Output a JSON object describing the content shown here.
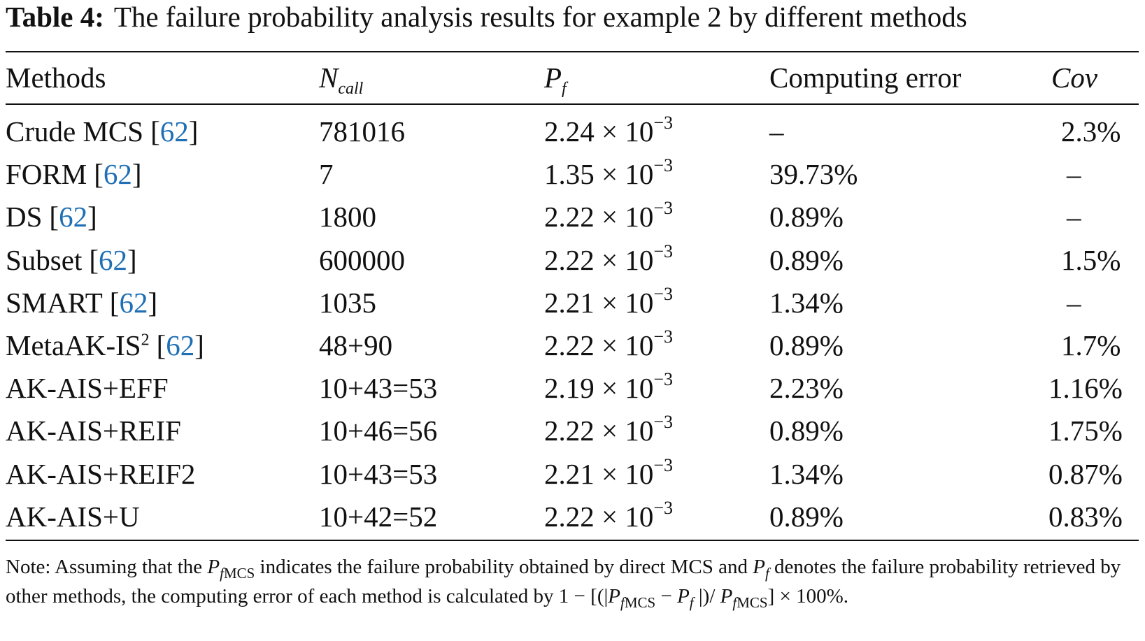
{
  "caption": {
    "label": "Table 4:",
    "text": "The failure probability analysis results for example 2 by different methods"
  },
  "table": {
    "header": {
      "methods": "Methods",
      "ncall": {
        "base": "N",
        "sub": "call"
      },
      "pf": {
        "base": "P",
        "sub": "f"
      },
      "error": "Computing error",
      "cov": "Cov"
    },
    "rows": [
      {
        "method": {
          "name": "Crude MCS"
        },
        "citation": [
          "[",
          "62",
          "]"
        ],
        "ncall": "781016",
        "pf": {
          "mantissa": "2.24 × 10",
          "exp": "−3"
        },
        "error": "–",
        "cov": "2.3%"
      },
      {
        "method": {
          "name": "FORM"
        },
        "citation": [
          "[",
          "62",
          "]"
        ],
        "ncall": "7",
        "pf": {
          "mantissa": "1.35 × 10",
          "exp": "−3"
        },
        "error": "39.73%",
        "cov": "–"
      },
      {
        "method": {
          "name": "DS"
        },
        "citation": [
          "[",
          "62",
          "]"
        ],
        "ncall": "1800",
        "pf": {
          "mantissa": "2.22 × 10",
          "exp": "−3"
        },
        "error": "0.89%",
        "cov": "–"
      },
      {
        "method": {
          "name": "Subset"
        },
        "citation": [
          "[",
          "62",
          "]"
        ],
        "ncall": "600000",
        "pf": {
          "mantissa": "2.22 × 10",
          "exp": "−3"
        },
        "error": "0.89%",
        "cov": "1.5%"
      },
      {
        "method": {
          "name": "SMART"
        },
        "citation": [
          "[",
          "62",
          "]"
        ],
        "ncall": "1035",
        "pf": {
          "mantissa": "2.21 × 10",
          "exp": "−3"
        },
        "error": "1.34%",
        "cov": "–"
      },
      {
        "method": {
          "name": "MetaAK-IS",
          "sup": "2"
        },
        "citation": [
          "[",
          "62",
          "]"
        ],
        "ncall": "48+90",
        "pf": {
          "mantissa": "2.22 × 10",
          "exp": "−3"
        },
        "error": "0.89%",
        "cov": "1.7%"
      },
      {
        "method": {
          "name": "AK-AIS+EFF"
        },
        "ncall": "10+43=53",
        "pf": {
          "mantissa": "2.19 × 10",
          "exp": "−3"
        },
        "error": "2.23%",
        "cov": "1.16%"
      },
      {
        "method": {
          "name": "AK-AIS+REIF"
        },
        "ncall": "10+46=56",
        "pf": {
          "mantissa": "2.22 × 10",
          "exp": "−3"
        },
        "error": "0.89%",
        "cov": "1.75%"
      },
      {
        "method": {
          "name": "AK-AIS+REIF2"
        },
        "ncall": "10+43=53",
        "pf": {
          "mantissa": "2.21 × 10",
          "exp": "−3"
        },
        "error": "1.34%",
        "cov": "0.87%"
      },
      {
        "method": {
          "name": "AK-AIS+U"
        },
        "ncall": "10+42=52",
        "pf": {
          "mantissa": "2.22 × 10",
          "exp": "−3"
        },
        "error": "0.89%",
        "cov": "0.83%"
      }
    ]
  },
  "note": [
    {
      "text": "Note: Assuming that the ",
      "style": "normal"
    },
    {
      "text": "P",
      "style": "italic"
    },
    {
      "text": "f",
      "style": "italic-sub"
    },
    {
      "text": "MCS",
      "style": "sub"
    },
    {
      "text": " indicates the failure probability obtained by direct MCS and ",
      "style": "normal"
    },
    {
      "text": "P",
      "style": "italic"
    },
    {
      "text": "f",
      "style": "italic-sub"
    },
    {
      "text": " denotes the failure probability retrieved by other methods, the computing error of each method is calculated by 1 − [(|",
      "style": "normal"
    },
    {
      "text": "P",
      "style": "italic"
    },
    {
      "text": "f",
      "style": "italic-sub"
    },
    {
      "text": "MCS",
      "style": "sub"
    },
    {
      "text": " − ",
      "style": "normal"
    },
    {
      "text": "P",
      "style": "italic"
    },
    {
      "text": "f",
      "style": "italic-sub"
    },
    {
      "text": " |)/ ",
      "style": "normal"
    },
    {
      "text": "P",
      "style": "italic"
    },
    {
      "text": "f",
      "style": "italic-sub"
    },
    {
      "text": "MCS",
      "style": "sub"
    },
    {
      "text": "] × 100%.",
      "style": "normal"
    }
  ]
}
